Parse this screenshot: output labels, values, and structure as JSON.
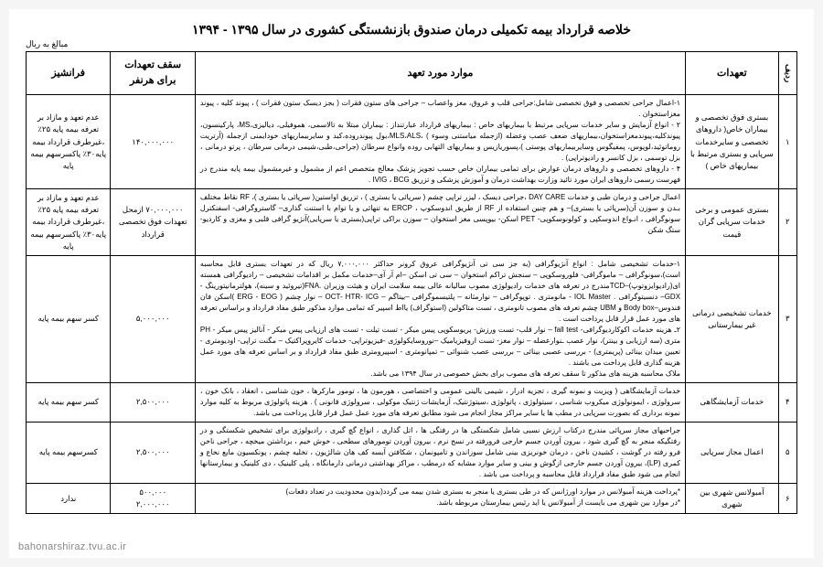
{
  "title": "خلاصه قرارداد بیمه تکمیلی درمان صندوق بازنشستگی کشوری در سال ۱۳۹۵ - ۱۳۹۴",
  "currency_note": "مبالغ به ریال",
  "watermark": "bahonarshiraz.tvu.ac.ir",
  "headers": {
    "idx": "ردیف",
    "commitments": "تعهدات",
    "items": "موارد مورد تعهد",
    "cap": "سقف تعهدات برای هرنفر",
    "franchise": "فرانشیز"
  },
  "rows": [
    {
      "idx": "۱",
      "commitment": "بستری فوق تخصصی و بیماران خاص( داروهای تخصصی و سایرخدمات سرپایی و بستری مرتبط با بیماریهای خاص )",
      "desc": "۱-اعمال جراحی تخصصی و فوق تخصصی شامل:جراحی قلب و عروق، مغز واعصاب – جراحی های ستون فقرات ( بجز دیسک ستون فقرات ) ، پیوند کلیه ، پیوند مغزاستخوان .\n۲ - انواع آزمایش و سایر خدمات سرپایی مرتبط با بیماریهای خاص :  بیماریهای قرارداد عبارتنداز : بیماران مبتلا به تالاسمی، هموفیلی، دیالیزی،MS، پارکینسون، پیوندکلیه،پیوندمغزاستخوان،بیماریهای ضعف عصب وعضله (ازجمله میاستنی وسوء ) ،MLS،ALS،بول پیوندروده،کبد و سایربیماریهای خودایمنی ازجمله (آرتریت روماتوئید،لوپوس، پمفیگوس وسایربیماریهای پوستی )،پسوریازیس و بیماریهای التهابی روده وانواع سرطان (جراحی،طبی،شیمی درمانی سرطان ، پرتو درمانی ، بزل توسمی ، بزل کانسر و رادیوتراپی) .\n۴ - داروهای تخصصی و داروهای درمان عوارض برای تمامی بیماران خاص حسب تجویز پزشک معالج متخصص اعم از مشمول و غیرمشمول بیمه پایه مندرج در فهرست رسمی داروهای ایران مورد تائید وزارت بهداشت درمان و آموزش پزشکی و تزریق IVIG ، BCG .",
      "cap": "۱۴۰,۰۰۰,۰۰۰",
      "franchise": "عدم تعهد و مازاد بر تعرفه بیمه پایه ۲۵٪ ،غیرطرف قرارداد بیمه پایه۳۰٪ پاکسرسهم بیمه پایه"
    },
    {
      "idx": "۲",
      "commitment": "بستری عمومی و برخی خدمات سرپایی گران قیمت",
      "desc": "اعمال جراحی و درمان طبی و خدمات DAY CARE ،جراحی دیسک ، لیزر تراپی چشم ( سرپائی یا بستری ) ، تزریق اواستین( سرپائی یا بستری )، RF  نقاط مختلف بـدن و سوزن آن(سرپائی یا بستری)– و هم چنین استفاده از RF از طریق اندوسکوپ ، ERCP به تنهائی و یا توام با استنت گذاری– گاستروگرافی- اسفنکترل سونوگرافی ، انـواع اندوسکپی و کولونوسکوپی- PET اسکن- بیوپسی مغز استخوان – سوزن براکی تراپی(بستری یا سرپایی)آنژیو گرافی قلبی و مغزی و کاردیو- ستگ شکن",
      "cap": "۷۰,۰۰۰,۰۰۰ ازمحل تعهدات فوق تخصصی قرارداد",
      "franchise": "عدم تعهد و مازاد بر تعرفه بیمه پایه ۲۵٪ ،غیرطرف قرارداد بیمه پایه۳۰٪ پاکسرسهم بیمه پایه"
    },
    {
      "idx": "۳",
      "commitment": "خدمات تشخیصی درمانی غیر بیمارستانی",
      "desc": "۱-خدمات تشخیصی شامل : انواع آنژیوگرافی (به جز سی تی آنژیوگرافی عروق کرونر حداکثر ۷,۰۰۰,۰۰۰ ریال که در تعهدات بستری قابل محاسبه است)،سونوگرافی – ماموگرافی- فلوروسکوپی – سنجش تراکم استخوان – سی تی اسکن –ام آر آی–خدمات مکمل بر اقدامات تشخیصی – رادیوگرافی همسته ای(رادیوایزوتوپ)–TCDمندرج در تعرفه های خدمات رادیولوژی مصوب سالیانه عالی بیمه سلامت ایران و هیئت وزیران .FNA(تیروئید و سینه)، هولترمانیتورینگ -GDX– دنسیتوگرافی . IOL Master - مانومتری . توپوگرافی – نوارمثانه – پلتیسموگرافی –بیتاگم – OCT- HTR- ICG – نوار چشم ( ERG - EOG )اسکن فان فندوس–Body box و  UBM چشم تعرفه های مصوب تانومتری ، تست متاکولین (استوگراف) یااط اسپیر که تمامی موارد مذکور طبق مفاد قرارداد و براساس تعرفه های مورد عمل قرار قابل پرداخت است .\n۲ـ هزینه خدمات اکوکاردیوگرافی- fall test – نوار قلب- تست ورزش- پریوسکوپی پیس میکر - تست تیلت - تست های ارزیابی پیس میکر - آنالیز پیس میکر - PH متری (سه ارزیابی و بینتر)،  نوار عصب ـنوارعضله – نوار مغز- تست اروفیزیامیک –نوروسایکولوژی -فیزیوتراپی- خدمات کایروپراکتیک – مگنت تراپی- اودیومتری - تعیین میدان بینائی (پریمتری) - بررسی عصبی بینائی – بررسی عصب شنوائی – تمپانومتری - اسپیرومتری طبق مفاد قرارداد و بر اساس تعرفه های مورد عمل هزینه گذاری قابل پرداخت می باشند .\nملاک محاسبه هزینه های مذکور تا سقف تعرفه های مصوب برای بخش خصوصی در سال ۱۳۹۴ می باشد.",
      "cap": "۵,۰۰۰,۰۰۰",
      "franchise": "کسر سهم بیمه پایه"
    },
    {
      "idx": "۴",
      "commitment": "خدمات آزمایشگاهی",
      "desc": "خدمات آزمایشگاهی ( ویزیت و نمونه گیری ، تجزیه ادرار ، شیمی بالینی عمومی و اختصاصی ، هورمون ها ، تومور مارکرها ، خون شناسی ، انعقاد ، بانک خون ، سرولوژی ، ایمونولوژی میکروب شناسی ، سیتولوژی ، پاتولوژی ،سیتوژنتیک، آزمایشات ژنتیک موکولی ، سرولوژی قانونی ) . هزینه پاتولوژی مربوط به کلیه موارد نمونه برداری که بصورت سرپایی در مطب ها یا سایر مراکز مجاز انجام می شود مطابق تعرفه های مورد عمل عمل قرار قابل پرداخت می باشد.",
      "cap": "۲,۵۰۰,۰۰۰",
      "franchise": "کسر سهم بیمه پایه"
    },
    {
      "idx": "۵",
      "commitment": "اعمال مجاز سرپایی",
      "desc": "جراحیهای مجاز سرپائی مندرج درکتاب ارزش نسبی شامل شکستگی ها در رفتگی ها ، اتل گذاری ، انواع گچ گیری ، رادیولوژی برای تشخیص شکستگی و در رفتگیکه منجر به گچ گیری شود ، بیرون آوردن جسم خارجی فرورفته در نسج نرم ، بیرون آوردن تومورهای سطحی ، خوش خیم ، برداشتن میخچه ، جراحی ناخن فرو رفته در گوشت ، کشیدن ناخن ، درمان خونریزی بینی شامل سوزاندن و تامپونمان ، شکافتن آبسه کف هان شالژیون ، تخلیه چشم ، پونکسیون مایع نخاع و کمری (LP)، بیرون آوردن جسم خارجی ازگوش و بینی و سایر موارد مشابه که درمطب ، مراکز بهداشتی درمانی دارمانگاه ، پلی کلینیک ، دی کلینیک و بیمارستانها انجام می شود طبق مفاد قرارداد قابل محاسبه و پرداخت می باشد .",
      "cap": "۲,۵۰۰,۰۰۰",
      "franchise": "کسرسهم بیمه پایه"
    },
    {
      "idx": "۶",
      "commitment": "آمبولانس شهری بین شهری",
      "desc": "*پرداخت هزینه آمبولانس در موارد اورژانس که در طی بستری یا منجر به بستری شدن بیمه می گردد(بدون محدودیت در تعداد دفعات)\n*در موارد بین شهری می بایست از آمبولانس یا اید رئیس بیمارستان مربوطه باشد.",
      "cap": "۵۰۰,۰۰۰\n۲,۰۰۰,۰۰۰",
      "franchise": "ندارد"
    }
  ]
}
